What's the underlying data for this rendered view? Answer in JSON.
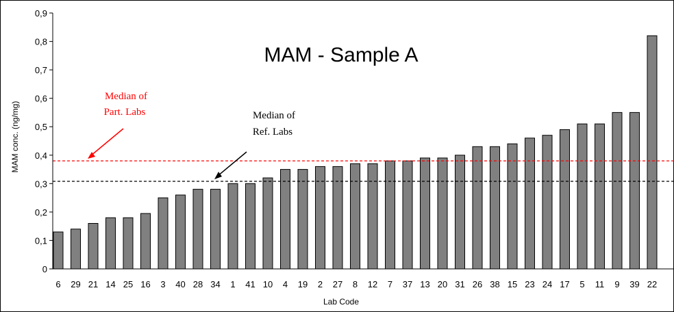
{
  "chart_data": {
    "type": "bar",
    "title": "MAM - Sample A",
    "xlabel": "Lab Code",
    "ylabel": "MAM conc. (ng/mg)",
    "ylim": [
      0,
      0.9
    ],
    "yticks": [
      "0",
      "0,1",
      "0,2",
      "0,3",
      "0,4",
      "0,5",
      "0,6",
      "0,7",
      "0,8",
      "0,9"
    ],
    "categories": [
      "6",
      "29",
      "21",
      "14",
      "25",
      "16",
      "3",
      "40",
      "28",
      "34",
      "1",
      "41",
      "10",
      "4",
      "19",
      "2",
      "27",
      "8",
      "12",
      "7",
      "37",
      "13",
      "20",
      "31",
      "26",
      "38",
      "15",
      "23",
      "24",
      "17",
      "5",
      "11",
      "9",
      "39",
      "22"
    ],
    "values": [
      0.13,
      0.14,
      0.16,
      0.18,
      0.18,
      0.195,
      0.25,
      0.26,
      0.28,
      0.28,
      0.3,
      0.3,
      0.32,
      0.35,
      0.35,
      0.36,
      0.36,
      0.37,
      0.37,
      0.38,
      0.38,
      0.39,
      0.39,
      0.4,
      0.43,
      0.43,
      0.44,
      0.46,
      0.47,
      0.49,
      0.51,
      0.51,
      0.55,
      0.55,
      0.82
    ],
    "bar_color": "#808080",
    "grid": false,
    "reference_lines": [
      {
        "name": "Median of Part. Labs",
        "value": 0.38,
        "color": "#ff0000"
      },
      {
        "name": "Median of Ref. Labs",
        "value": 0.308,
        "color": "#000000"
      }
    ],
    "annotations": [
      {
        "line1": "Median of",
        "line2": "Part. Labs",
        "color": "#ff0000"
      },
      {
        "line1": "Median of",
        "line2": "Ref. Labs",
        "color": "#000000"
      }
    ]
  }
}
